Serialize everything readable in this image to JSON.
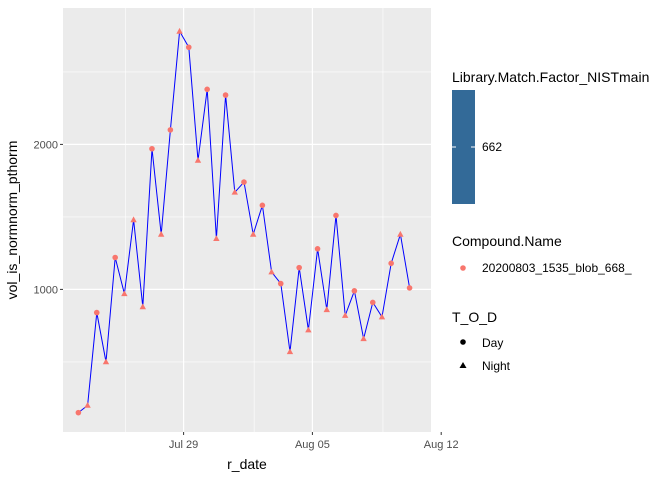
{
  "chart_data": {
    "type": "line",
    "xlabel": "r_date",
    "ylabel": "vol_is_normnorm_pthorm",
    "x_ticks": [
      "Jul 29",
      "Aug 05",
      "Aug 12"
    ],
    "y_ticks": [
      1000,
      2000
    ],
    "line_color": "#0000FF",
    "point_color": "#F8766D",
    "series": [
      {
        "points": [
          {
            "x": "Jul 22 19:00",
            "y": 150,
            "tod": "Day"
          },
          {
            "x": "Jul 23 07:00",
            "y": 200,
            "tod": "Night"
          },
          {
            "x": "Jul 23 19:00",
            "y": 840,
            "tod": "Day"
          },
          {
            "x": "Jul 24 07:00",
            "y": 500,
            "tod": "Night"
          },
          {
            "x": "Jul 24 19:00",
            "y": 1220,
            "tod": "Day"
          },
          {
            "x": "Jul 25 07:00",
            "y": 970,
            "tod": "Night"
          },
          {
            "x": "Jul 25 19:00",
            "y": 1480,
            "tod": "Night"
          },
          {
            "x": "Jul 26 07:00",
            "y": 880,
            "tod": "Night"
          },
          {
            "x": "Jul 26 19:00",
            "y": 1970,
            "tod": "Day"
          },
          {
            "x": "Jul 27 07:00",
            "y": 1380,
            "tod": "Night"
          },
          {
            "x": "Jul 27 19:00",
            "y": 2100,
            "tod": "Day"
          },
          {
            "x": "Jul 28 07:00",
            "y": 2780,
            "tod": "Night"
          },
          {
            "x": "Jul 28 19:00",
            "y": 2670,
            "tod": "Day"
          },
          {
            "x": "Jul 29 07:00",
            "y": 1890,
            "tod": "Night"
          },
          {
            "x": "Jul 29 19:00",
            "y": 2380,
            "tod": "Day"
          },
          {
            "x": "Jul 30 07:00",
            "y": 1350,
            "tod": "Night"
          },
          {
            "x": "Jul 30 19:00",
            "y": 2340,
            "tod": "Day"
          },
          {
            "x": "Jul 31 07:00",
            "y": 1670,
            "tod": "Night"
          },
          {
            "x": "Jul 31 19:00",
            "y": 1740,
            "tod": "Day"
          },
          {
            "x": "Aug 01 07:00",
            "y": 1380,
            "tod": "Night"
          },
          {
            "x": "Aug 01 19:00",
            "y": 1580,
            "tod": "Day"
          },
          {
            "x": "Aug 02 07:00",
            "y": 1120,
            "tod": "Night"
          },
          {
            "x": "Aug 02 19:00",
            "y": 1040,
            "tod": "Day"
          },
          {
            "x": "Aug 03 07:00",
            "y": 570,
            "tod": "Night"
          },
          {
            "x": "Aug 03 19:00",
            "y": 1150,
            "tod": "Day"
          },
          {
            "x": "Aug 04 07:00",
            "y": 720,
            "tod": "Night"
          },
          {
            "x": "Aug 04 19:00",
            "y": 1280,
            "tod": "Day"
          },
          {
            "x": "Aug 05 07:00",
            "y": 860,
            "tod": "Night"
          },
          {
            "x": "Aug 05 19:00",
            "y": 1510,
            "tod": "Day"
          },
          {
            "x": "Aug 06 07:00",
            "y": 820,
            "tod": "Night"
          },
          {
            "x": "Aug 06 19:00",
            "y": 990,
            "tod": "Day"
          },
          {
            "x": "Aug 07 07:00",
            "y": 660,
            "tod": "Night"
          },
          {
            "x": "Aug 07 19:00",
            "y": 910,
            "tod": "Day"
          },
          {
            "x": "Aug 08 07:00",
            "y": 810,
            "tod": "Night"
          },
          {
            "x": "Aug 08 19:00",
            "y": 1180,
            "tod": "Day"
          },
          {
            "x": "Aug 09 07:00",
            "y": 1380,
            "tod": "Night"
          },
          {
            "x": "Aug 09 19:00",
            "y": 1010,
            "tod": "Day"
          }
        ]
      }
    ],
    "legends": {
      "fill": {
        "title": "Library.Match.Factor_NISTmain",
        "label": "662",
        "color": "#336A98"
      },
      "compound": {
        "title": "Compound.Name",
        "label": "20200803_1535_blob_668_",
        "color": "#F8766D"
      },
      "shape": {
        "title": "T_O_D",
        "items": [
          {
            "label": "Day",
            "shape": "circle"
          },
          {
            "label": "Night",
            "shape": "triangle"
          }
        ]
      }
    },
    "grid": true
  }
}
